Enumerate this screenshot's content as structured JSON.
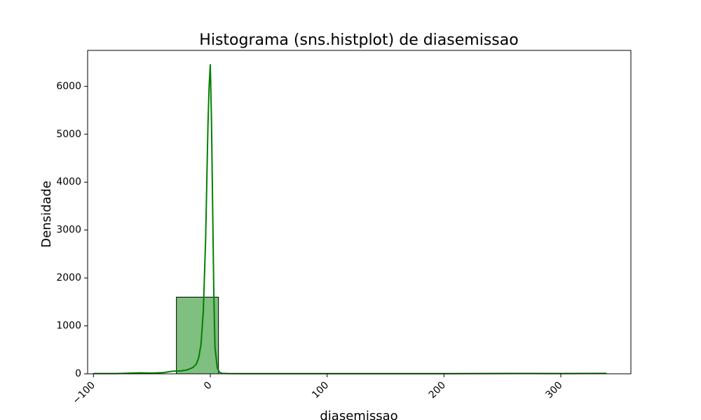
{
  "chart_data": {
    "type": "histogram",
    "title": "Histograma (sns.histplot) de diasemissao",
    "xlabel": "diasemissao",
    "ylabel": "Densidade",
    "xlim": [
      -105,
      360
    ],
    "ylim": [
      0,
      6750
    ],
    "x_ticks": [
      -100,
      0,
      100,
      200,
      300
    ],
    "x_tick_labels": [
      "−100",
      "0",
      "100",
      "200",
      "300"
    ],
    "y_ticks": [
      0,
      1000,
      2000,
      3000,
      4000,
      5000,
      6000
    ],
    "y_tick_labels": [
      "0",
      "1000",
      "2000",
      "3000",
      "4000",
      "5000",
      "6000"
    ],
    "bins": [
      {
        "x0": -29,
        "x1": 7,
        "count": 1600
      }
    ],
    "kde": {
      "x": [
        -100,
        -80,
        -60,
        -50,
        -40,
        -32,
        -25,
        -20,
        -15,
        -12,
        -10,
        -8,
        -6,
        -4,
        -2,
        -1,
        0,
        1,
        2,
        3,
        4,
        6,
        8,
        10,
        15,
        30,
        100,
        200,
        260,
        300,
        339
      ],
      "y": [
        5,
        5,
        20,
        15,
        25,
        55,
        60,
        80,
        130,
        200,
        330,
        600,
        1300,
        2800,
        5200,
        6000,
        6450,
        5300,
        3500,
        1700,
        550,
        120,
        30,
        10,
        5,
        3,
        3,
        3,
        8,
        5,
        10
      ]
    },
    "colors": {
      "bar_fill": "#7fbf7f",
      "bar_edge": "#000000",
      "kde_line": "#008000"
    },
    "grid": false,
    "legend": "none"
  }
}
